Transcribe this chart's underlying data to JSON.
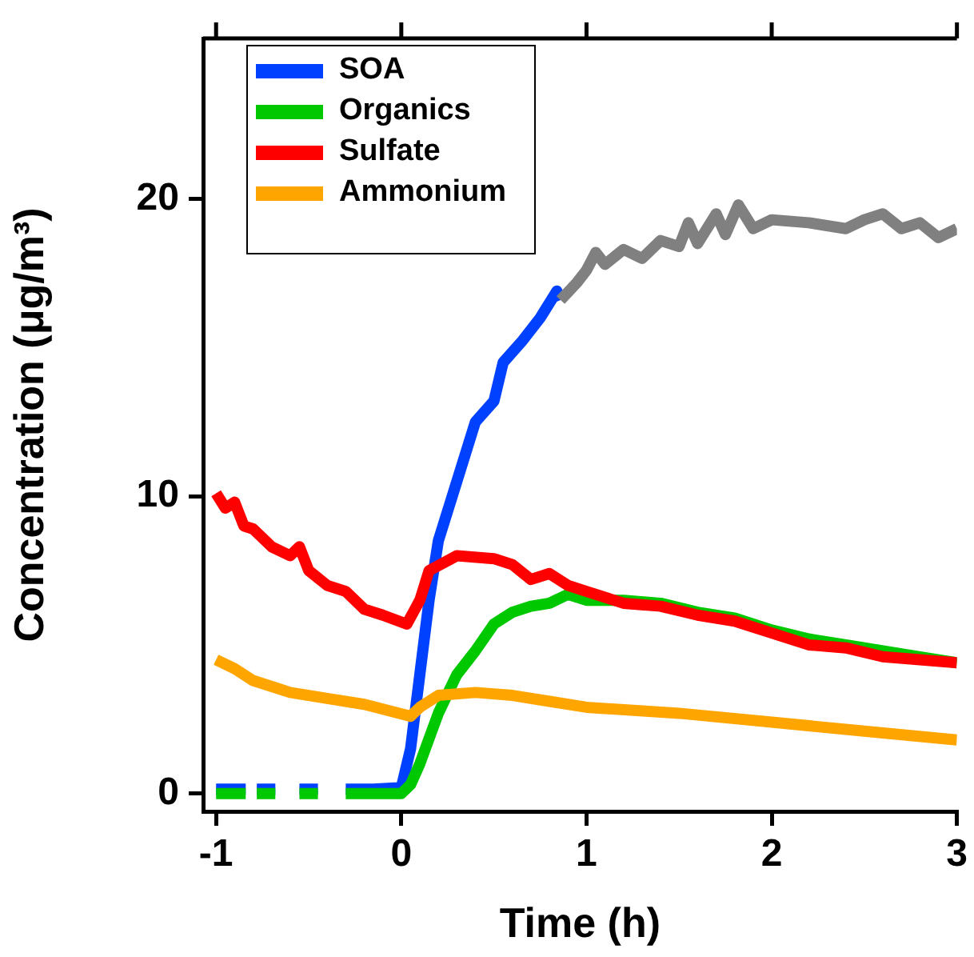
{
  "chart_data": {
    "type": "line",
    "xlabel": "Time (h)",
    "ylabel": "Concentration (μg/m³)",
    "xlim": [
      -1.07,
      3
    ],
    "ylim": [
      -0.6,
      25.4
    ],
    "xticks": [
      -1,
      0,
      1,
      2,
      3
    ],
    "yticks": [
      0,
      10,
      20
    ],
    "legend": "top left",
    "marker": "none",
    "line_style": "solid",
    "series": [
      {
        "name": "SOA",
        "color": "#0040ff",
        "x": [
          -1,
          -0.84,
          -0.82,
          -0.78,
          -0.68,
          -0.62,
          -0.55,
          -0.45,
          -0.38,
          -0.3,
          -0.15,
          0,
          0.05,
          0.1,
          0.15,
          0.2,
          0.3,
          0.4,
          0.5,
          0.55,
          0.65,
          0.75,
          0.84,
          0.86
        ],
        "values": [
          0.15,
          0.15,
          null,
          0.15,
          0.15,
          null,
          0.15,
          0.15,
          null,
          0.15,
          0.15,
          0.2,
          1.5,
          4,
          6.5,
          8.5,
          10.5,
          12.5,
          13.2,
          14.5,
          15.2,
          16,
          16.9,
          16.6
        ]
      },
      {
        "color": "#808080",
        "x": [
          0.86,
          0.95,
          1,
          1.05,
          1.1,
          1.2,
          1.3,
          1.4,
          1.5,
          1.55,
          1.6,
          1.7,
          1.75,
          1.82,
          1.9,
          2,
          2.2,
          2.4,
          2.5,
          2.6,
          2.7,
          2.8,
          2.9,
          3
        ],
        "values": [
          16.6,
          17.2,
          17.6,
          18.2,
          17.8,
          18.3,
          18,
          18.6,
          18.4,
          19.2,
          18.5,
          19.5,
          18.8,
          19.8,
          19,
          19.3,
          19.2,
          19,
          19.3,
          19.5,
          19,
          19.2,
          18.7,
          19
        ]
      },
      {
        "name": "Organics",
        "color": "#00c800",
        "x": [
          -1,
          -0.84,
          -0.82,
          -0.78,
          -0.68,
          -0.62,
          -0.55,
          -0.45,
          -0.38,
          -0.3,
          -0.15,
          0,
          0.05,
          0.1,
          0.2,
          0.3,
          0.4,
          0.5,
          0.6,
          0.7,
          0.8,
          0.9,
          1,
          1.2,
          1.4,
          1.6,
          1.8,
          2,
          2.2,
          2.4,
          2.6,
          2.8,
          3
        ],
        "values": [
          0,
          0,
          null,
          0,
          0,
          null,
          0,
          0,
          null,
          0,
          0,
          0,
          0.3,
          1,
          2.7,
          4,
          4.8,
          5.7,
          6.1,
          6.3,
          6.4,
          6.7,
          6.5,
          6.5,
          6.4,
          6.1,
          5.9,
          5.5,
          5.2,
          5,
          4.8,
          4.6,
          4.4
        ]
      },
      {
        "name": "Sulfate",
        "color": "#ff0000",
        "x": [
          -1,
          -0.95,
          -0.9,
          -0.85,
          -0.8,
          -0.7,
          -0.6,
          -0.55,
          -0.5,
          -0.4,
          -0.3,
          -0.2,
          -0.1,
          0.03,
          0.1,
          0.15,
          0.3,
          0.5,
          0.6,
          0.7,
          0.8,
          0.9,
          1,
          1.2,
          1.4,
          1.6,
          1.8,
          2,
          2.2,
          2.4,
          2.6,
          2.8,
          3
        ],
        "values": [
          10.1,
          9.6,
          9.8,
          9,
          8.9,
          8.3,
          8,
          8.3,
          7.5,
          7,
          6.8,
          6.2,
          6,
          5.7,
          6.5,
          7.5,
          8,
          7.9,
          7.7,
          7.2,
          7.4,
          7,
          6.8,
          6.4,
          6.3,
          6,
          5.8,
          5.4,
          5,
          4.9,
          4.6,
          4.5,
          4.4
        ]
      },
      {
        "name": "Ammonium",
        "color": "#ffa500",
        "x": [
          -1,
          -0.9,
          -0.8,
          -0.6,
          -0.4,
          -0.2,
          0.05,
          0.1,
          0.2,
          0.4,
          0.6,
          0.8,
          1,
          1.5,
          2,
          2.5,
          3
        ],
        "values": [
          4.5,
          4.2,
          3.8,
          3.4,
          3.2,
          3,
          2.6,
          2.9,
          3.3,
          3.4,
          3.3,
          3.1,
          2.9,
          2.7,
          2.4,
          2.1,
          1.8
        ]
      }
    ]
  }
}
